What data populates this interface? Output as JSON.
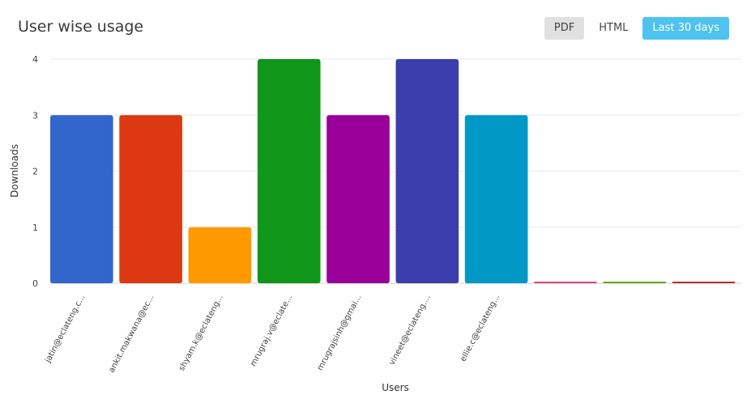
{
  "header": {
    "title": "User wise usage",
    "buttons": {
      "pdf": "PDF",
      "html": "HTML",
      "range": "Last 30 days"
    }
  },
  "chart_data": {
    "type": "bar",
    "xlabel": "Users",
    "ylabel": "Downloads",
    "ylim": [
      0,
      4
    ],
    "yticks": [
      "0",
      "1",
      "2",
      "3",
      "4"
    ],
    "grid": true,
    "categories": [
      "jatin@eclateng.c...",
      "ankit.makwana@ec...",
      "shyam.k@eclateng...",
      "mrugraj.v@eclate...",
      "mrugrajsinh@gmai...",
      "vineet@eclateng....",
      "ellie.c@eclateng...",
      "",
      "",
      ""
    ],
    "values": [
      3,
      3,
      1,
      4,
      3,
      4,
      3,
      0,
      0,
      0
    ],
    "colors": [
      "#3366cc",
      "#dc3912",
      "#ff9900",
      "#109618",
      "#990099",
      "#3b3eac",
      "#0099c6",
      "#dd4477",
      "#66aa00",
      "#b82e2e"
    ]
  }
}
